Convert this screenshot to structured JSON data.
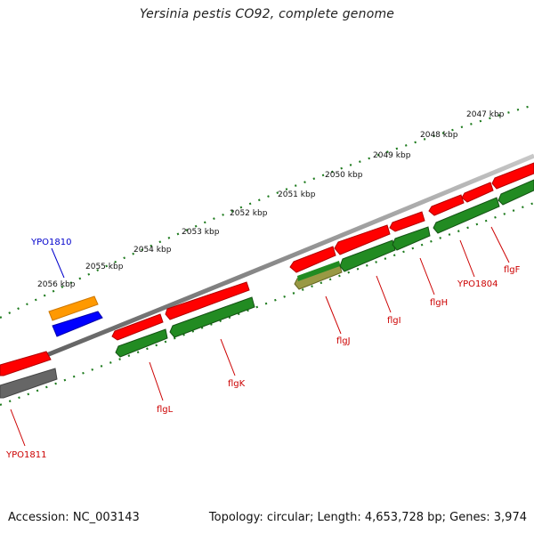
{
  "title": "Yersinia pestis CO92, complete genome",
  "footer": {
    "accession": "Accession: NC_003143",
    "summary": "Topology: circular; Length: 4,653,728 bp; Genes: 3,974"
  },
  "ticks": [
    "2047 kbp",
    "2048 kbp",
    "2049 kbp",
    "2050 kbp",
    "2051 kbp",
    "2052 kbp",
    "2053 kbp",
    "2054 kbp",
    "2055 kbp",
    "2056 kbp"
  ],
  "gene_labels": [
    "YPO1810",
    "flgL",
    "flgK",
    "flgJ",
    "flgI",
    "flgH",
    "YPO1804",
    "flgF",
    "YPO1811"
  ],
  "colors": {
    "forward_gene": "#ff0000",
    "reverse_gene": "#228b22",
    "backbone": "#8c8c8c",
    "tick": "#1e7b1e",
    "label_red": "#cc0000",
    "label_blue": "#0000cc",
    "orange_feature": "#ff9900",
    "blue_feature": "#0000ff",
    "grey_feature": "#666666",
    "olive_feature": "#999944"
  }
}
